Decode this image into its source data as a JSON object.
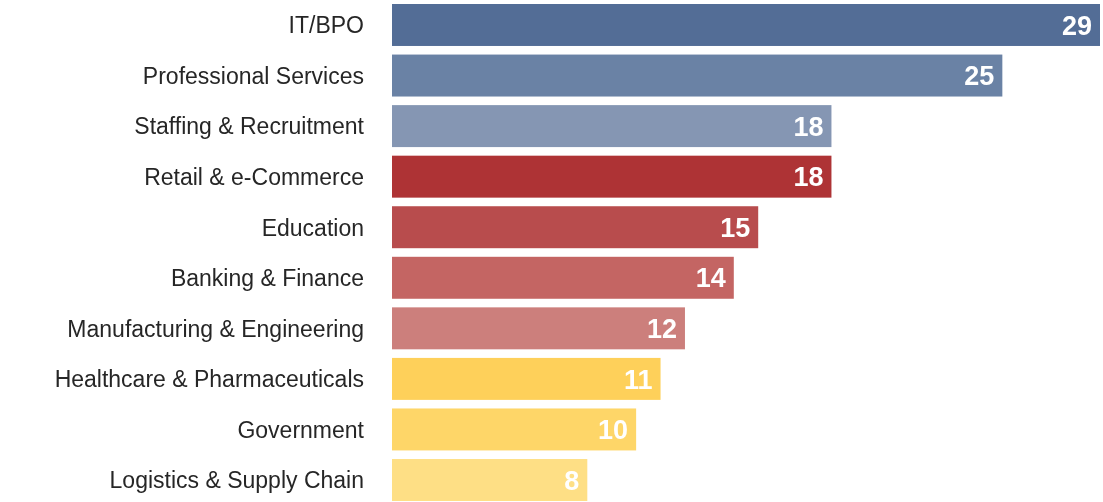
{
  "chart_data": {
    "type": "bar",
    "orientation": "horizontal",
    "categories": [
      "IT/BPO",
      "Professional Services",
      "Staffing & Recruitment",
      "Retail & e-Commerce",
      "Education",
      "Banking & Finance",
      "Manufacturing & Engineering",
      "Healthcare & Pharmaceuticals",
      "Government",
      "Logistics & Supply Chain"
    ],
    "values": [
      29,
      25,
      18,
      18,
      15,
      14,
      12,
      11,
      10,
      8
    ],
    "colors": [
      "#536d96",
      "#6a82a5",
      "#8596b3",
      "#ae3335",
      "#b84c4d",
      "#c46563",
      "#cc7f7c",
      "#fed05a",
      "#fed668",
      "#fedf85"
    ],
    "data_labels": true
  }
}
